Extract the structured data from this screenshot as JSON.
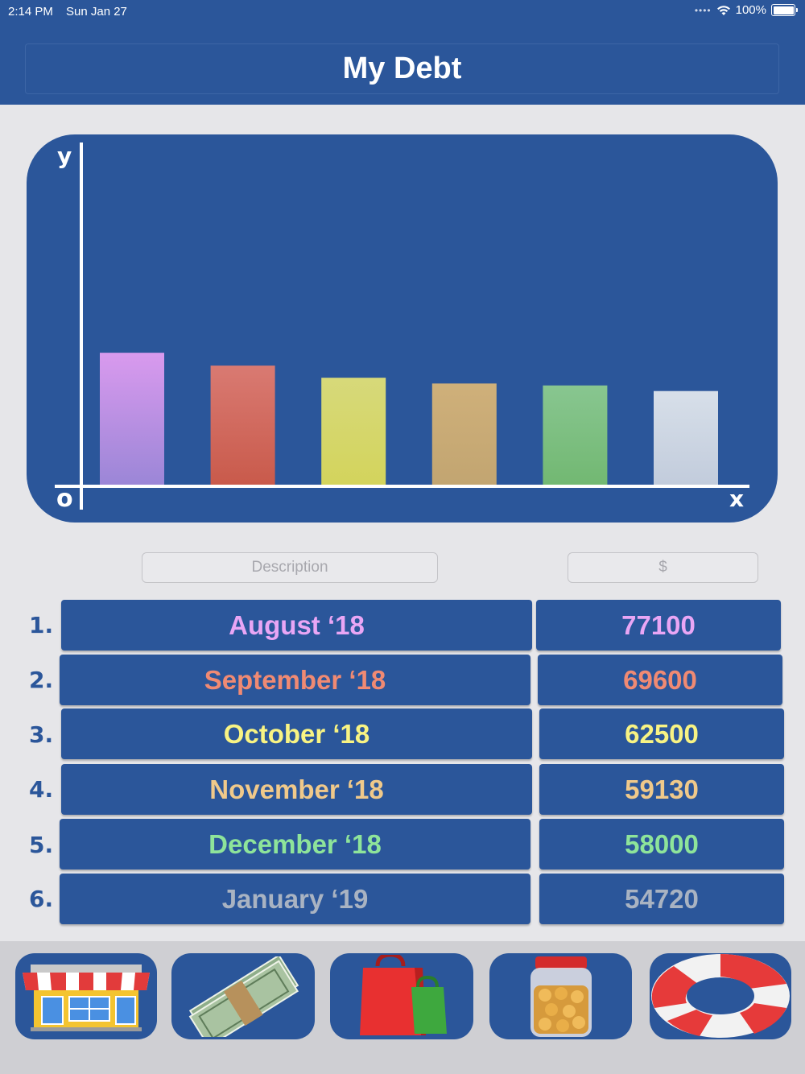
{
  "status_bar": {
    "time": "2:14 PM",
    "date": "Sun Jan 27",
    "battery": "100%"
  },
  "header": {
    "title": "My Debt"
  },
  "chart_data": {
    "type": "bar",
    "categories": [
      "August '18",
      "September '18",
      "October '18",
      "November '18",
      "December '18",
      "January '19"
    ],
    "values": [
      77100,
      69600,
      62500,
      59130,
      58000,
      54720
    ],
    "colors_top": [
      "#d99aee",
      "#d97a72",
      "#d7d97a",
      "#cfb07a",
      "#88c690",
      "#d7dfe9"
    ],
    "colors_bottom": [
      "#9b86d7",
      "#c95a4b",
      "#d3d45c",
      "#c2a571",
      "#72b872",
      "#c2ccdc"
    ],
    "xlabel": "x",
    "ylabel": "y",
    "origin_label": "o",
    "ylim": [
      0,
      200000
    ]
  },
  "inputs": {
    "description_placeholder": "Description",
    "amount_placeholder": "$"
  },
  "entries": [
    {
      "num": "1.",
      "label": "August ‘18",
      "amount": "77100",
      "color": "#e9a6f5"
    },
    {
      "num": "2.",
      "label": "September ‘18",
      "amount": "69600",
      "color": "#f08a73"
    },
    {
      "num": "3.",
      "label": "October ‘18",
      "amount": "62500",
      "color": "#f8f383"
    },
    {
      "num": "4.",
      "label": "November ‘18",
      "amount": "59130",
      "color": "#f0c98a"
    },
    {
      "num": "5.",
      "label": "December ‘18",
      "amount": "58000",
      "color": "#8ee49a"
    },
    {
      "num": "6.",
      "label": "January ‘19",
      "amount": "54720",
      "color": "#a9b3c2"
    }
  ],
  "tabs": [
    {
      "icon": "store-icon"
    },
    {
      "icon": "money-stack-icon"
    },
    {
      "icon": "shopping-bags-icon"
    },
    {
      "icon": "coin-jar-icon"
    },
    {
      "icon": "lifebuoy-icon"
    }
  ],
  "colors": {
    "primary": "#2b569a",
    "background": "#e6e6e9"
  }
}
